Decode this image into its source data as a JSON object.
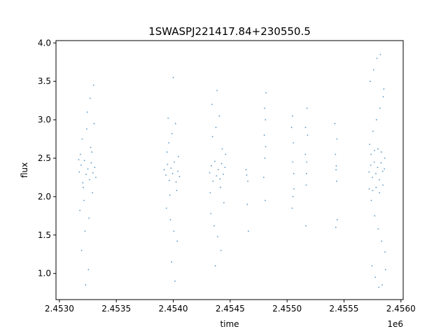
{
  "chart_data": {
    "type": "scatter",
    "title": "1SWASPJ221417.84+230550.5",
    "xlabel": "time",
    "ylabel": "flux",
    "x_offset_label": "1e6",
    "xlim": [
      2452970,
      2456020
    ],
    "ylim": [
      0.66,
      4.03
    ],
    "x_tick_labels": [
      "2.4530",
      "2.4535",
      "2.4540",
      "2.4545",
      "2.4550",
      "2.4555",
      "2.4560"
    ],
    "x_tick_values": [
      2453000,
      2453500,
      2454000,
      2454500,
      2455000,
      2455500,
      2456000
    ],
    "y_tick_labels": [
      "1.0",
      "1.5",
      "2.0",
      "2.5",
      "3.0",
      "3.5",
      "4.0"
    ],
    "y_tick_values": [
      1.0,
      1.5,
      2.0,
      2.5,
      3.0,
      3.5,
      4.0
    ],
    "grid": false,
    "marker_color": "#1f77b4",
    "series": [
      {
        "points": [
          [
            2453175,
            2.32
          ],
          [
            2453190,
            2.41
          ],
          [
            2453205,
            2.18
          ],
          [
            2453220,
            2.47
          ],
          [
            2453235,
            2.29
          ],
          [
            2453250,
            2.36
          ],
          [
            2453265,
            2.22
          ],
          [
            2453280,
            2.44
          ],
          [
            2453295,
            2.31
          ],
          [
            2453310,
            2.38
          ],
          [
            2453180,
            1.82
          ],
          [
            2453200,
            2.75
          ],
          [
            2453215,
            1.95
          ],
          [
            2453240,
            2.88
          ],
          [
            2453260,
            1.72
          ],
          [
            2453275,
            2.64
          ],
          [
            2453290,
            2.05
          ],
          [
            2453305,
            2.95
          ],
          [
            2453225,
            1.55
          ],
          [
            2453245,
            3.1
          ],
          [
            2453195,
            1.3
          ],
          [
            2453270,
            3.28
          ],
          [
            2453255,
            1.05
          ],
          [
            2453300,
            3.45
          ],
          [
            2453230,
            0.85
          ],
          [
            2453185,
            2.55
          ],
          [
            2453210,
            2.12
          ],
          [
            2453285,
            2.58
          ],
          [
            2453320,
            2.25
          ],
          [
            2453170,
            2.48
          ],
          [
            2453920,
            2.35
          ],
          [
            2453935,
            2.28
          ],
          [
            2453950,
            2.42
          ],
          [
            2453965,
            2.21
          ],
          [
            2453980,
            2.37
          ],
          [
            2453995,
            2.3
          ],
          [
            2454010,
            2.45
          ],
          [
            2454025,
            2.19
          ],
          [
            2454040,
            2.33
          ],
          [
            2454055,
            2.26
          ],
          [
            2453940,
            1.85
          ],
          [
            2453960,
            2.7
          ],
          [
            2453975,
            1.7
          ],
          [
            2453990,
            2.82
          ],
          [
            2454005,
            1.55
          ],
          [
            2454020,
            2.95
          ],
          [
            2454035,
            1.42
          ],
          [
            2453955,
            3.02
          ],
          [
            2453985,
            1.15
          ],
          [
            2454000,
            3.55
          ],
          [
            2454015,
            0.9
          ],
          [
            2453945,
            2.58
          ],
          [
            2454030,
            2.08
          ],
          [
            2454045,
            2.52
          ],
          [
            2453970,
            2.02
          ],
          [
            2454320,
            2.31
          ],
          [
            2454335,
            2.4
          ],
          [
            2454350,
            2.2
          ],
          [
            2454365,
            2.46
          ],
          [
            2454380,
            2.27
          ],
          [
            2454395,
            2.35
          ],
          [
            2454410,
            2.23
          ],
          [
            2454425,
            2.43
          ],
          [
            2454440,
            2.29
          ],
          [
            2454455,
            2.38
          ],
          [
            2454330,
            1.78
          ],
          [
            2454345,
            2.78
          ],
          [
            2454360,
            1.62
          ],
          [
            2454375,
            2.9
          ],
          [
            2454390,
            1.48
          ],
          [
            2454405,
            3.05
          ],
          [
            2454420,
            1.3
          ],
          [
            2454340,
            3.2
          ],
          [
            2454370,
            1.1
          ],
          [
            2454385,
            3.38
          ],
          [
            2454415,
            2.12
          ],
          [
            2454430,
            2.62
          ],
          [
            2454445,
            1.92
          ],
          [
            2454460,
            2.55
          ],
          [
            2454325,
            2.05
          ],
          [
            2454640,
            2.35
          ],
          [
            2454645,
            2.28
          ],
          [
            2454650,
            1.9
          ],
          [
            2454660,
            1.55
          ],
          [
            2454655,
            2.2
          ],
          [
            2454800,
            2.8
          ],
          [
            2454810,
            3.0
          ],
          [
            2454805,
            2.5
          ],
          [
            2454815,
            3.35
          ],
          [
            2454795,
            2.25
          ],
          [
            2454808,
            1.95
          ],
          [
            2454812,
            2.65
          ],
          [
            2454802,
            3.15
          ],
          [
            2455040,
            2.9
          ],
          [
            2455050,
            2.45
          ],
          [
            2455060,
            2.1
          ],
          [
            2455045,
            1.85
          ],
          [
            2455055,
            2.7
          ],
          [
            2455048,
            3.05
          ],
          [
            2455058,
            2.3
          ],
          [
            2455052,
            2.0
          ],
          [
            2455160,
            2.55
          ],
          [
            2455170,
            2.3
          ],
          [
            2455165,
            1.62
          ],
          [
            2455175,
            3.15
          ],
          [
            2455180,
            2.8
          ],
          [
            2455168,
            2.15
          ],
          [
            2455172,
            2.45
          ],
          [
            2455162,
            2.9
          ],
          [
            2455420,
            2.95
          ],
          [
            2455430,
            2.35
          ],
          [
            2455440,
            1.7
          ],
          [
            2455425,
            2.55
          ],
          [
            2455435,
            2.2
          ],
          [
            2455428,
            1.6
          ],
          [
            2455438,
            2.75
          ],
          [
            2455432,
            2.4
          ],
          [
            2455720,
            2.32
          ],
          [
            2455735,
            2.41
          ],
          [
            2455750,
            2.25
          ],
          [
            2455765,
            2.45
          ],
          [
            2455780,
            2.3
          ],
          [
            2455795,
            2.38
          ],
          [
            2455810,
            2.22
          ],
          [
            2455825,
            2.44
          ],
          [
            2455840,
            2.33
          ],
          [
            2455855,
            2.36
          ],
          [
            2455725,
            2.68
          ],
          [
            2455740,
            1.95
          ],
          [
            2455755,
            2.85
          ],
          [
            2455770,
            1.75
          ],
          [
            2455785,
            3.0
          ],
          [
            2455800,
            1.58
          ],
          [
            2455815,
            3.15
          ],
          [
            2455830,
            1.42
          ],
          [
            2455845,
            3.3
          ],
          [
            2455860,
            1.28
          ],
          [
            2455730,
            3.5
          ],
          [
            2455745,
            1.1
          ],
          [
            2455760,
            3.65
          ],
          [
            2455775,
            0.95
          ],
          [
            2455790,
            3.8
          ],
          [
            2455805,
            0.82
          ],
          [
            2455820,
            3.85
          ],
          [
            2455835,
            0.85
          ],
          [
            2455850,
            3.4
          ],
          [
            2455865,
            1.05
          ],
          [
            2455738,
            2.55
          ],
          [
            2455752,
            2.08
          ],
          [
            2455768,
            2.6
          ],
          [
            2455782,
            2.12
          ],
          [
            2455798,
            2.62
          ],
          [
            2455812,
            2.05
          ],
          [
            2455828,
            2.58
          ],
          [
            2455842,
            2.15
          ],
          [
            2455858,
            2.5
          ],
          [
            2455722,
            2.1
          ]
        ]
      }
    ]
  }
}
